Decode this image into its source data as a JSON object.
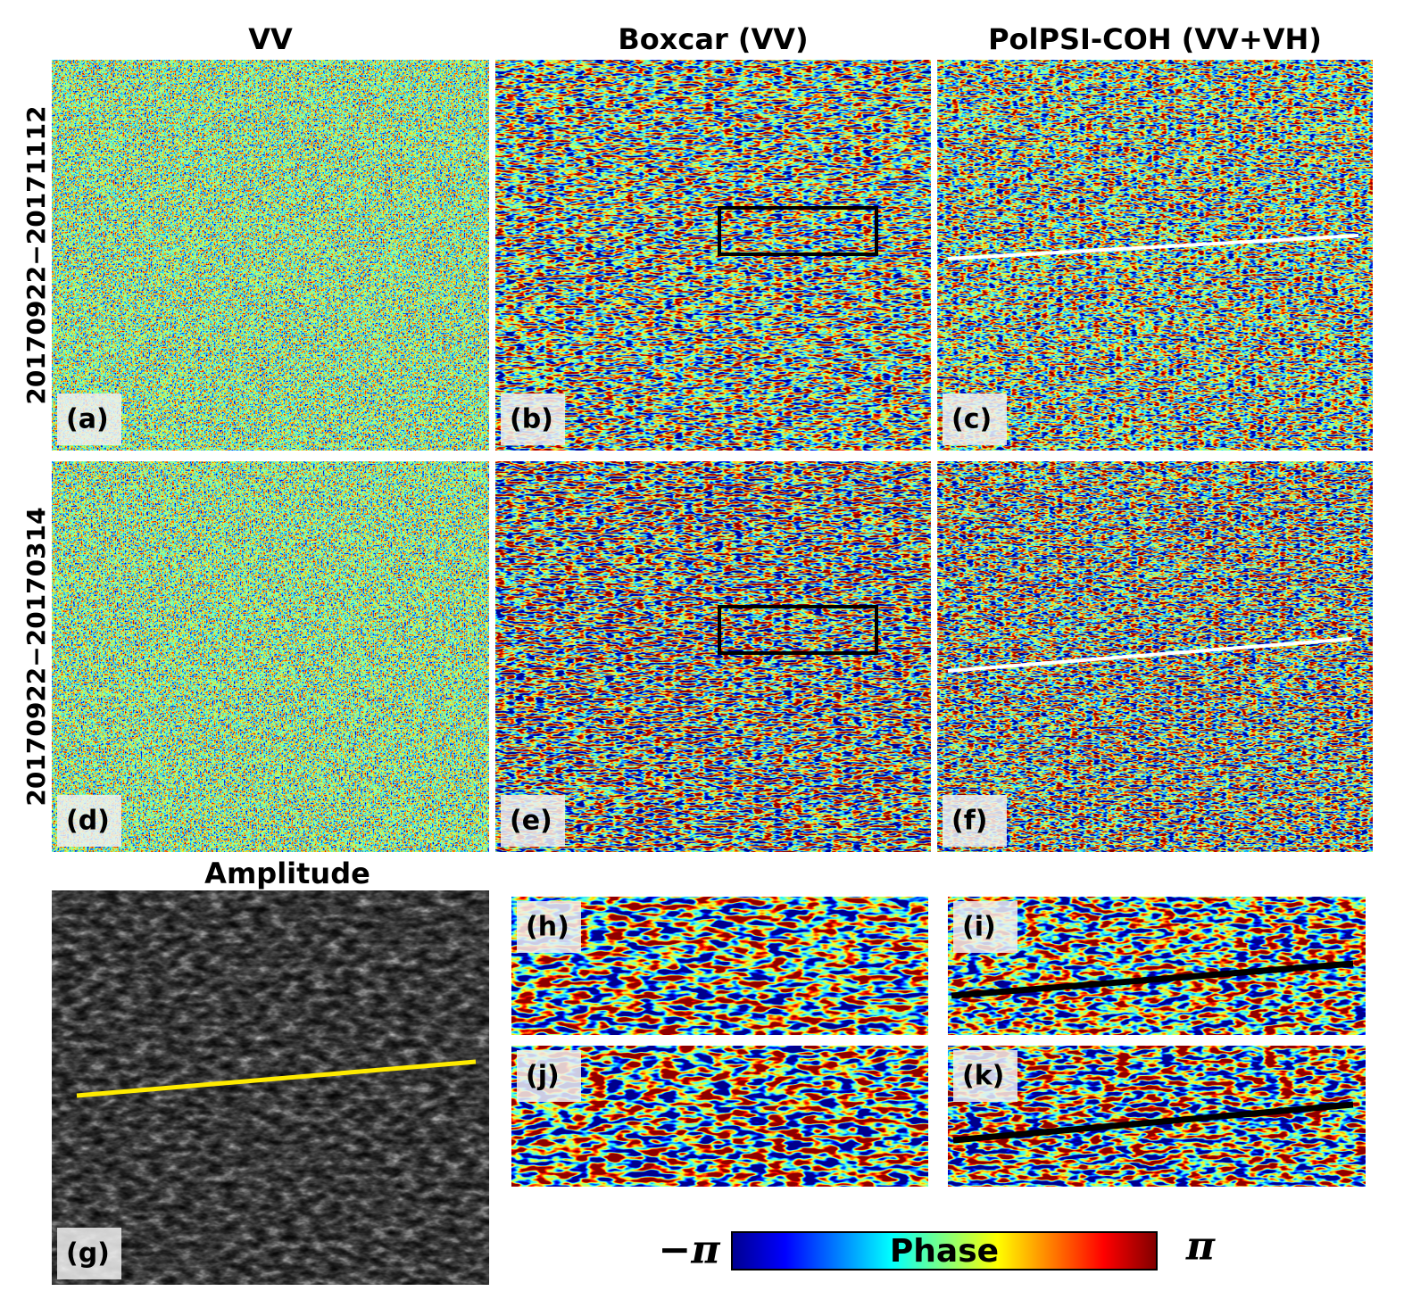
{
  "column_titles": [
    "VV",
    "Boxcar (VV)",
    "PolPSI-COH (VV+VH)"
  ],
  "row_labels": [
    "20170922−20171112",
    "20170922−20170314"
  ],
  "panel_labels": [
    "(a)",
    "(b)",
    "(c)",
    "(d)",
    "(e)",
    "(f)",
    "(g)",
    "(h)",
    "(i)",
    "(j)",
    "(k)"
  ],
  "amplitude_title": "Amplitude",
  "colorbar": {
    "min_label": "−π",
    "label": "Phase",
    "max_label": "π"
  }
}
